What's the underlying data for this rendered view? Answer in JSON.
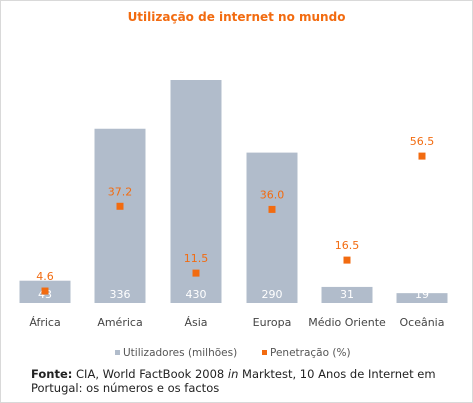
{
  "chart_data": {
    "type": "bar",
    "title": "Utilização de internet no mundo",
    "categories": [
      "África",
      "América",
      "Ásia",
      "Europa",
      "Médio Oriente",
      "Oceânia"
    ],
    "series": [
      {
        "name": "Utilizadores (milhões)",
        "type": "bar",
        "color": "#b1bccb",
        "values": [
          43,
          336,
          430,
          290,
          31,
          19
        ],
        "labels": [
          "43",
          "336",
          "430",
          "290",
          "31",
          "19"
        ]
      },
      {
        "name": "Penetração (%)",
        "type": "scatter",
        "color": "#f26b10",
        "values": [
          4.6,
          37.2,
          11.5,
          36.0,
          16.5,
          56.5
        ],
        "labels": [
          "4.6",
          "37.2",
          "11.5",
          "36.0",
          "16.5",
          "56.5"
        ]
      }
    ],
    "xlabel": "",
    "ylabel": "",
    "grid": false,
    "legend": "bottom"
  },
  "source": {
    "label": "Fonte:",
    "text_before_italic": " CIA, World FactBook 2008 ",
    "italic": "in",
    "text_after_italic": " Marktest, 10 Anos de Internet em Portugal: os números e os factos"
  }
}
